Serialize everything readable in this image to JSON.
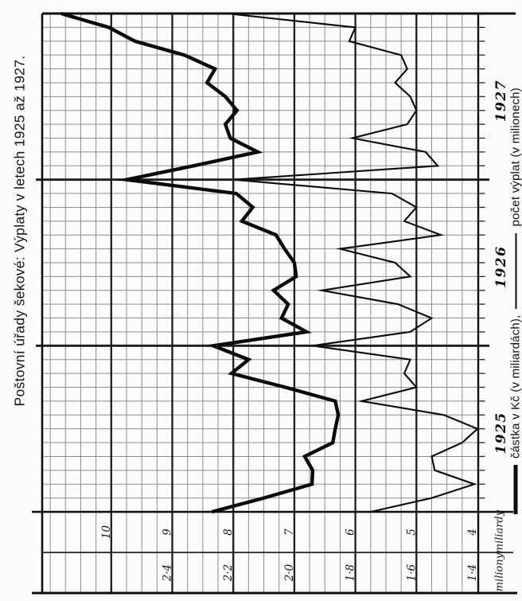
{
  "chart_data": {
    "type": "line",
    "title": "Poštovní úřady šekové: Výplaty v letech 1925 až 1927.",
    "x_unit": "month",
    "x_range": "XII 1924 – XII 1927",
    "orientation": "rotated-90-ccw-print",
    "grid": true,
    "legend_position": "right-edge-rotated",
    "year_labels": [
      "1925",
      "1926",
      "1927"
    ],
    "series": [
      {
        "name": "částka v Kč (v miliardách)",
        "style": "thick",
        "axis": "miliardy",
        "values": [
          8.35,
          7.5,
          6.71,
          6.7,
          6.83,
          6.37,
          6.33,
          6.28,
          6.33,
          7.15,
          8.03,
          7.75,
          8.33,
          6.8,
          7.21,
          7.1,
          7.34,
          6.97,
          7.0,
          7.16,
          7.3,
          7.86,
          7.68,
          7.95,
          9.75,
          8.65,
          7.6,
          8.05,
          8.13,
          7.94,
          8.13,
          8.43,
          8.3,
          8.8,
          9.61,
          10.04,
          10.82
        ]
      },
      {
        "name": "počet výplat (v milionech)",
        "style": "thin",
        "axis": "miliony",
        "values": [
          1.75,
          1.55,
          1.41,
          1.54,
          1.55,
          1.45,
          1.4,
          1.51,
          1.78,
          1.6,
          1.64,
          1.62,
          1.94,
          1.62,
          1.55,
          1.66,
          1.91,
          1.62,
          1.67,
          1.85,
          1.52,
          1.64,
          1.6,
          1.68,
          2.2,
          1.53,
          1.57,
          1.81,
          1.63,
          1.6,
          1.62,
          1.67,
          1.63,
          1.65,
          1.82,
          1.8,
          2.22
        ]
      }
    ],
    "axes": {
      "miliardy": {
        "label": "miliardy",
        "ticks": [
          "10",
          "9",
          "8",
          "7",
          "6",
          "5",
          "4"
        ],
        "tick_values": [
          10,
          9,
          8,
          7,
          6,
          5,
          4
        ],
        "range": [
          4,
          11.1
        ]
      },
      "miliony": {
        "label": "miliony",
        "ticks": [
          "2·4",
          "2·2",
          "2·0",
          "1·8",
          "1·6",
          "1·4"
        ],
        "tick_values": [
          2.4,
          2.2,
          2.0,
          1.8,
          1.6,
          1.4
        ],
        "range": [
          1.4,
          2.82
        ]
      }
    }
  },
  "legend": {
    "castka": "částka v Kč (v miliardách),",
    "pocet": "počet výplat (v milionech)"
  }
}
